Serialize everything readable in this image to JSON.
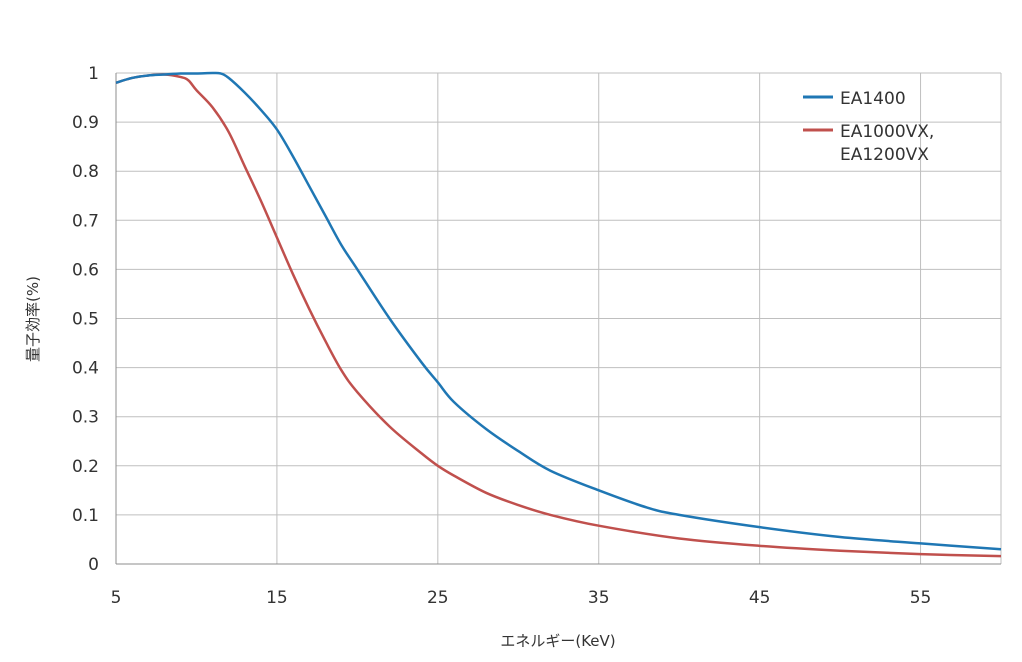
{
  "chart_data": {
    "type": "line",
    "title": "",
    "xlabel": "エネルギー(KeV)",
    "ylabel": "量子効率(%)",
    "xlim": [
      5,
      60
    ],
    "ylim": [
      0,
      1
    ],
    "x_ticks": [
      "5",
      "15",
      "25",
      "35",
      "45",
      "55"
    ],
    "y_ticks": [
      "0",
      "0.1",
      "0.2",
      "0.3",
      "0.4",
      "0.5",
      "0.6",
      "0.7",
      "0.8",
      "0.9",
      "1"
    ],
    "grid": true,
    "legend_position": "top-right",
    "series": [
      {
        "name": "EA1400",
        "color": "#1f77b4",
        "x": [
          5,
          6,
          7,
          8,
          9,
          10,
          11,
          11.5,
          12,
          13,
          14,
          15,
          16,
          17,
          18,
          19,
          20,
          22,
          24,
          25,
          26,
          28,
          30,
          32,
          35,
          38,
          40,
          45,
          50,
          55,
          60
        ],
        "y": [
          0.98,
          0.99,
          0.995,
          0.997,
          0.999,
          0.999,
          1.0,
          0.999,
          0.99,
          0.96,
          0.925,
          0.885,
          0.83,
          0.77,
          0.71,
          0.65,
          0.6,
          0.5,
          0.41,
          0.37,
          0.33,
          0.275,
          0.23,
          0.19,
          0.15,
          0.115,
          0.1,
          0.075,
          0.055,
          0.042,
          0.03
        ]
      },
      {
        "name": "EA1000VX, EA1200VX",
        "label_lines": [
          "EA1000VX,",
          "EA1200VX"
        ],
        "color": "#c0504d",
        "x": [
          5,
          6,
          7,
          8,
          9,
          9.5,
          10,
          11,
          12,
          13,
          14,
          15,
          16,
          17,
          18,
          19,
          20,
          22,
          24,
          25,
          26,
          28,
          30,
          32,
          35,
          40,
          45,
          50,
          55,
          60
        ],
        "y": [
          0.98,
          0.99,
          0.995,
          0.997,
          0.992,
          0.985,
          0.965,
          0.93,
          0.88,
          0.81,
          0.74,
          0.665,
          0.59,
          0.52,
          0.455,
          0.395,
          0.35,
          0.28,
          0.225,
          0.2,
          0.18,
          0.145,
          0.12,
          0.1,
          0.078,
          0.052,
          0.037,
          0.027,
          0.02,
          0.016
        ]
      }
    ]
  }
}
